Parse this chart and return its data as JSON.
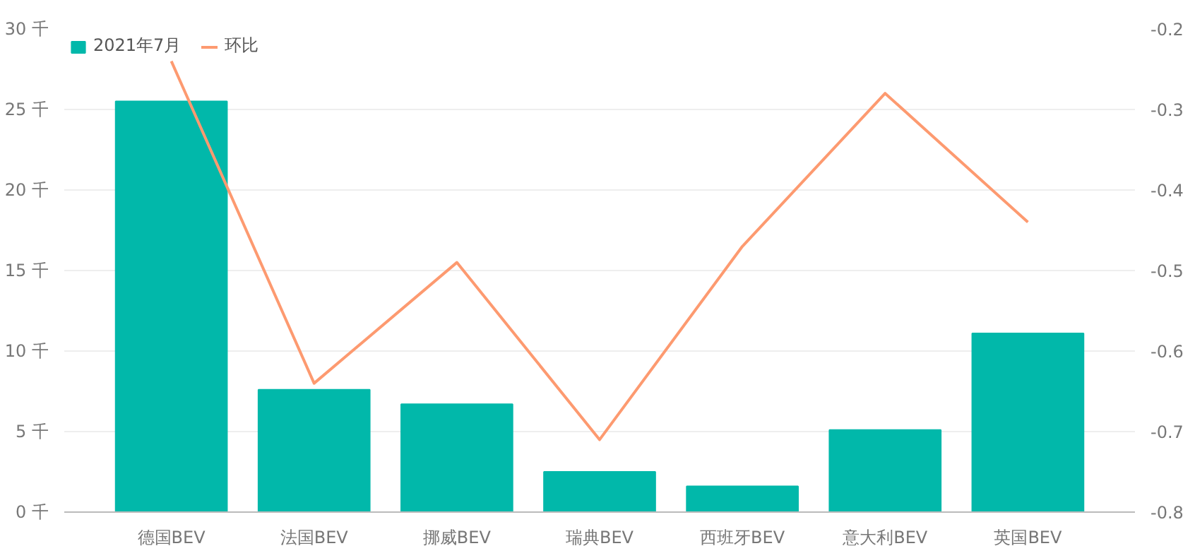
{
  "chart_data": {
    "type": "bar",
    "categories": [
      "德国BEV",
      "法国BEV",
      "挪威BEV",
      "瑞典BEV",
      "西班牙BEV",
      "意大利BEV",
      "英国BEV"
    ],
    "series": [
      {
        "name": "2021年7月",
        "color": "#01b8aa",
        "values": [
          25.5,
          7.6,
          6.7,
          2.5,
          1.6,
          5.1,
          11.1
        ]
      },
      {
        "name": "环比",
        "type": "line",
        "axis": "y2",
        "color": "#fd9a70",
        "values": [
          -0.24,
          -0.64,
          -0.49,
          -0.71,
          -0.47,
          -0.28,
          -0.44
        ]
      }
    ],
    "ylim": [
      0,
      30
    ],
    "yticks": [
      {
        "value": 0,
        "label": "0 千"
      },
      {
        "value": 5,
        "label": "5 千"
      },
      {
        "value": 10,
        "label": "10 千"
      },
      {
        "value": 15,
        "label": "15 千"
      },
      {
        "value": 20,
        "label": "20 千"
      },
      {
        "value": 25,
        "label": "25 千"
      },
      {
        "value": 30,
        "label": "30 千"
      }
    ],
    "y2lim": [
      -0.8,
      -0.2
    ],
    "y2ticks": [
      -0.8,
      -0.7,
      -0.6,
      -0.5,
      -0.4,
      -0.3,
      -0.2
    ],
    "grid": "y",
    "legend": "top left"
  }
}
